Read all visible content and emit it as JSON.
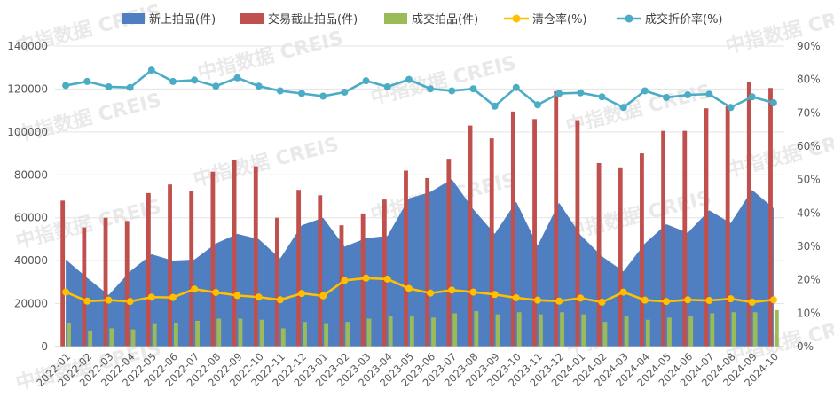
{
  "chart_data": {
    "type": "combo",
    "categories": [
      "2022-01",
      "2022-02",
      "2022-03",
      "2022-04",
      "2022-05",
      "2022-06",
      "2022-07",
      "2022-08",
      "2022-09",
      "2022-10",
      "2022-11",
      "2022-12",
      "2023-01",
      "2023-02",
      "2023-03",
      "2023-04",
      "2023-05",
      "2023-06",
      "2023-07",
      "2023-08",
      "2023-09",
      "2023-10",
      "2023-11",
      "2023-12",
      "2024-01",
      "2024-02",
      "2024-03",
      "2024-04",
      "2024-05",
      "2024-06",
      "2024-07",
      "2024-08",
      "2024-09",
      "2024-10"
    ],
    "y_left": {
      "min": 0,
      "max": 140000,
      "ticks": [
        "0",
        "20000",
        "40000",
        "60000",
        "80000",
        "100000",
        "120000",
        "140000"
      ],
      "tick_values": [
        0,
        20000,
        40000,
        60000,
        80000,
        100000,
        120000,
        140000
      ]
    },
    "y_right": {
      "min": 0,
      "max": 90,
      "ticks": [
        "0%",
        "10%",
        "20%",
        "30%",
        "40%",
        "50%",
        "60%",
        "70%",
        "80%",
        "90%"
      ],
      "tick_values": [
        0,
        10,
        20,
        30,
        40,
        50,
        60,
        70,
        80,
        90
      ]
    },
    "legend_position": "top",
    "series": [
      {
        "name": "新上拍品(件)",
        "type": "area",
        "axis": "left",
        "color": "#4f7fc0",
        "values": [
          40500,
          32000,
          24000,
          35000,
          43000,
          40000,
          40500,
          48000,
          52500,
          50000,
          41000,
          56500,
          60000,
          46500,
          50500,
          51500,
          69000,
          72000,
          78000,
          64000,
          52500,
          67500,
          47000,
          67000,
          52000,
          42000,
          35000,
          48000,
          57000,
          53000,
          63500,
          57500,
          73000,
          64500
        ]
      },
      {
        "name": "交易截止拍品(件)",
        "type": "bar",
        "axis": "left",
        "color": "#c0504d",
        "values": [
          68000,
          55500,
          60000,
          58500,
          71500,
          75500,
          72500,
          81500,
          87000,
          84000,
          60000,
          73000,
          70500,
          56500,
          62000,
          68500,
          82000,
          78500,
          87500,
          103000,
          97000,
          109500,
          106000,
          119000,
          105500,
          85500,
          83500,
          90000,
          100500,
          100500,
          111000,
          112000,
          123500,
          120500
        ]
      },
      {
        "name": "成交拍品(件)",
        "type": "bar",
        "axis": "left",
        "color": "#9bbb59",
        "values": [
          11000,
          7500,
          8500,
          8000,
          10500,
          11000,
          12000,
          13000,
          13000,
          12500,
          8500,
          11500,
          10500,
          11500,
          13000,
          14000,
          14500,
          13500,
          15500,
          16500,
          15000,
          16000,
          15000,
          16000,
          15000,
          11500,
          14000,
          12500,
          13500,
          14000,
          15500,
          16000,
          16000,
          17000
        ]
      },
      {
        "name": "清仓率(%)",
        "type": "line",
        "axis": "right",
        "color": "#ffc000",
        "values": [
          16.3,
          13.6,
          13.9,
          13.5,
          14.8,
          14.7,
          17.2,
          16.2,
          15.3,
          14.8,
          14.0,
          15.9,
          15.2,
          19.8,
          20.5,
          20.2,
          17.4,
          16.0,
          16.9,
          16.3,
          15.6,
          14.6,
          13.9,
          13.6,
          14.5,
          13.3,
          16.3,
          13.9,
          13.5,
          14.0,
          13.8,
          14.3,
          13.3,
          14.0
        ]
      },
      {
        "name": "成交折价率(%)",
        "type": "line",
        "axis": "right",
        "color": "#4bacc6",
        "values": [
          78.2,
          79.4,
          77.8,
          77.6,
          82.8,
          79.4,
          79.8,
          78.0,
          80.5,
          78.0,
          76.6,
          75.8,
          75.0,
          76.2,
          79.6,
          77.8,
          80.0,
          77.2,
          76.6,
          77.2,
          72.0,
          77.6,
          72.4,
          75.8,
          76.0,
          74.8,
          71.6,
          76.6,
          74.6,
          75.4,
          75.6,
          71.6,
          74.8,
          73.0
        ]
      }
    ]
  },
  "watermark": {
    "text": "中指数据 CREIS"
  }
}
